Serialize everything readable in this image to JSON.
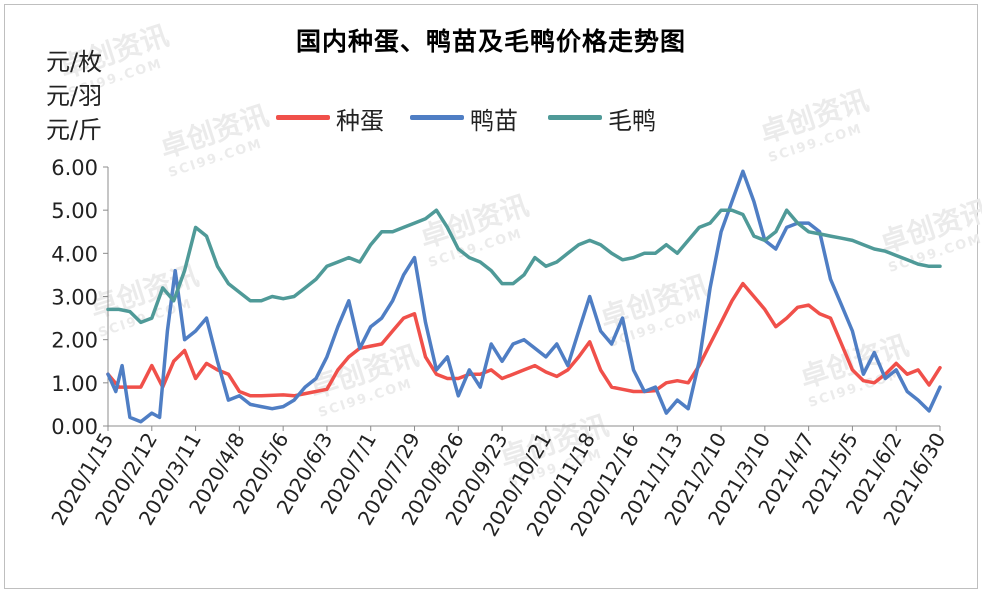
{
  "chart_data": {
    "type": "line",
    "title": "国内种蛋、鸭苗及毛鸭价格走势图",
    "units": [
      "元/枚",
      "元/羽",
      "元/斤"
    ],
    "ylim": [
      0,
      6
    ],
    "yticks": [
      "0.00",
      "1.00",
      "2.00",
      "3.00",
      "4.00",
      "5.00",
      "6.00"
    ],
    "xticks": [
      "2020/1/15",
      "2020/2/12",
      "2020/3/11",
      "2020/4/8",
      "2020/5/6",
      "2020/6/3",
      "2020/7/1",
      "2020/7/29",
      "2020/8/26",
      "2020/9/23",
      "2020/10/21",
      "2020/11/18",
      "2020/12/16",
      "2021/1/13",
      "2021/2/10",
      "2021/3/10",
      "2021/4/7",
      "2021/5/5",
      "2021/6/2",
      "2021/6/30"
    ],
    "x_range": [
      "2020/1/15",
      "2021/6/30"
    ],
    "grid": false,
    "legend_position": "top",
    "series": [
      {
        "name": "种蛋",
        "color": "#f0504a",
        "points": [
          [
            "2020/1/15",
            1.2
          ],
          [
            "2020/1/22",
            0.9
          ],
          [
            "2020/2/5",
            0.9
          ],
          [
            "2020/2/12",
            1.4
          ],
          [
            "2020/2/19",
            0.9
          ],
          [
            "2020/2/26",
            1.5
          ],
          [
            "2020/3/4",
            1.75
          ],
          [
            "2020/3/11",
            1.1
          ],
          [
            "2020/3/18",
            1.45
          ],
          [
            "2020/3/25",
            1.3
          ],
          [
            "2020/4/1",
            1.2
          ],
          [
            "2020/4/8",
            0.8
          ],
          [
            "2020/4/15",
            0.7
          ],
          [
            "2020/4/22",
            0.7
          ],
          [
            "2020/5/6",
            0.72
          ],
          [
            "2020/5/13",
            0.7
          ],
          [
            "2020/5/20",
            0.75
          ],
          [
            "2020/6/3",
            0.85
          ],
          [
            "2020/6/10",
            1.3
          ],
          [
            "2020/6/17",
            1.6
          ],
          [
            "2020/6/24",
            1.8
          ],
          [
            "2020/7/1",
            1.85
          ],
          [
            "2020/7/8",
            1.9
          ],
          [
            "2020/7/15",
            2.2
          ],
          [
            "2020/7/22",
            2.5
          ],
          [
            "2020/7/29",
            2.6
          ],
          [
            "2020/8/5",
            1.6
          ],
          [
            "2020/8/12",
            1.2
          ],
          [
            "2020/8/19",
            1.1
          ],
          [
            "2020/8/26",
            1.1
          ],
          [
            "2020/9/2",
            1.2
          ],
          [
            "2020/9/9",
            1.2
          ],
          [
            "2020/9/16",
            1.3
          ],
          [
            "2020/9/23",
            1.1
          ],
          [
            "2020/9/30",
            1.2
          ],
          [
            "2020/10/7",
            1.3
          ],
          [
            "2020/10/14",
            1.4
          ],
          [
            "2020/10/21",
            1.25
          ],
          [
            "2020/10/28",
            1.15
          ],
          [
            "2020/11/4",
            1.3
          ],
          [
            "2020/11/11",
            1.6
          ],
          [
            "2020/11/18",
            1.95
          ],
          [
            "2020/11/25",
            1.3
          ],
          [
            "2020/12/2",
            0.9
          ],
          [
            "2020/12/9",
            0.85
          ],
          [
            "2020/12/16",
            0.8
          ],
          [
            "2020/12/23",
            0.8
          ],
          [
            "2020/12/30",
            0.82
          ],
          [
            "2021/1/6",
            1.0
          ],
          [
            "2021/1/13",
            1.05
          ],
          [
            "2021/1/20",
            1.0
          ],
          [
            "2021/1/27",
            1.4
          ],
          [
            "2021/2/3",
            1.9
          ],
          [
            "2021/2/10",
            2.4
          ],
          [
            "2021/2/17",
            2.9
          ],
          [
            "2021/2/24",
            3.3
          ],
          [
            "2021/3/3",
            3.0
          ],
          [
            "2021/3/10",
            2.7
          ],
          [
            "2021/3/17",
            2.3
          ],
          [
            "2021/3/24",
            2.5
          ],
          [
            "2021/3/31",
            2.75
          ],
          [
            "2021/4/7",
            2.8
          ],
          [
            "2021/4/14",
            2.6
          ],
          [
            "2021/4/21",
            2.5
          ],
          [
            "2021/4/28",
            1.9
          ],
          [
            "2021/5/5",
            1.3
          ],
          [
            "2021/5/12",
            1.05
          ],
          [
            "2021/5/19",
            1.0
          ],
          [
            "2021/5/26",
            1.2
          ],
          [
            "2021/6/2",
            1.45
          ],
          [
            "2021/6/9",
            1.2
          ],
          [
            "2021/6/16",
            1.3
          ],
          [
            "2021/6/23",
            0.95
          ],
          [
            "2021/6/30",
            1.35
          ]
        ]
      },
      {
        "name": "鸭苗",
        "color": "#4f7ec4",
        "points": [
          [
            "2020/1/15",
            1.2
          ],
          [
            "2020/1/20",
            0.8
          ],
          [
            "2020/1/24",
            1.4
          ],
          [
            "2020/1/29",
            0.2
          ],
          [
            "2020/2/5",
            0.1
          ],
          [
            "2020/2/12",
            0.3
          ],
          [
            "2020/2/17",
            0.2
          ],
          [
            "2020/2/22",
            2.2
          ],
          [
            "2020/2/27",
            3.6
          ],
          [
            "2020/3/4",
            2.0
          ],
          [
            "2020/3/11",
            2.2
          ],
          [
            "2020/3/18",
            2.5
          ],
          [
            "2020/3/25",
            1.5
          ],
          [
            "2020/4/1",
            0.6
          ],
          [
            "2020/4/8",
            0.7
          ],
          [
            "2020/4/15",
            0.5
          ],
          [
            "2020/4/22",
            0.45
          ],
          [
            "2020/4/29",
            0.4
          ],
          [
            "2020/5/6",
            0.45
          ],
          [
            "2020/5/13",
            0.6
          ],
          [
            "2020/5/20",
            0.9
          ],
          [
            "2020/5/27",
            1.1
          ],
          [
            "2020/6/3",
            1.6
          ],
          [
            "2020/6/10",
            2.3
          ],
          [
            "2020/6/17",
            2.9
          ],
          [
            "2020/6/24",
            1.8
          ],
          [
            "2020/7/1",
            2.3
          ],
          [
            "2020/7/8",
            2.5
          ],
          [
            "2020/7/15",
            2.9
          ],
          [
            "2020/7/22",
            3.5
          ],
          [
            "2020/7/29",
            3.9
          ],
          [
            "2020/8/5",
            2.4
          ],
          [
            "2020/8/12",
            1.3
          ],
          [
            "2020/8/19",
            1.6
          ],
          [
            "2020/8/26",
            0.7
          ],
          [
            "2020/9/2",
            1.3
          ],
          [
            "2020/9/9",
            0.9
          ],
          [
            "2020/9/16",
            1.9
          ],
          [
            "2020/9/23",
            1.5
          ],
          [
            "2020/9/30",
            1.9
          ],
          [
            "2020/10/7",
            2.0
          ],
          [
            "2020/10/14",
            1.8
          ],
          [
            "2020/10/21",
            1.6
          ],
          [
            "2020/10/28",
            1.9
          ],
          [
            "2020/11/4",
            1.4
          ],
          [
            "2020/11/11",
            2.2
          ],
          [
            "2020/11/18",
            3.0
          ],
          [
            "2020/11/25",
            2.2
          ],
          [
            "2020/12/2",
            1.9
          ],
          [
            "2020/12/9",
            2.5
          ],
          [
            "2020/12/16",
            1.3
          ],
          [
            "2020/12/23",
            0.8
          ],
          [
            "2020/12/30",
            0.9
          ],
          [
            "2021/1/6",
            0.3
          ],
          [
            "2021/1/13",
            0.6
          ],
          [
            "2021/1/20",
            0.4
          ],
          [
            "2021/1/27",
            1.5
          ],
          [
            "2021/2/3",
            3.2
          ],
          [
            "2021/2/10",
            4.5
          ],
          [
            "2021/2/17",
            5.2
          ],
          [
            "2021/2/24",
            5.9
          ],
          [
            "2021/3/3",
            5.2
          ],
          [
            "2021/3/10",
            4.3
          ],
          [
            "2021/3/17",
            4.1
          ],
          [
            "2021/3/24",
            4.6
          ],
          [
            "2021/3/31",
            4.7
          ],
          [
            "2021/4/7",
            4.7
          ],
          [
            "2021/4/14",
            4.5
          ],
          [
            "2021/4/21",
            3.4
          ],
          [
            "2021/4/28",
            2.8
          ],
          [
            "2021/5/5",
            2.2
          ],
          [
            "2021/5/12",
            1.2
          ],
          [
            "2021/5/19",
            1.7
          ],
          [
            "2021/5/26",
            1.1
          ],
          [
            "2021/6/2",
            1.3
          ],
          [
            "2021/6/9",
            0.8
          ],
          [
            "2021/6/16",
            0.6
          ],
          [
            "2021/6/23",
            0.35
          ],
          [
            "2021/6/30",
            0.9
          ]
        ]
      },
      {
        "name": "毛鸭",
        "color": "#4f9a98",
        "points": [
          [
            "2020/1/15",
            2.7
          ],
          [
            "2020/1/22",
            2.7
          ],
          [
            "2020/1/29",
            2.65
          ],
          [
            "2020/2/5",
            2.4
          ],
          [
            "2020/2/12",
            2.5
          ],
          [
            "2020/2/19",
            3.2
          ],
          [
            "2020/2/26",
            2.9
          ],
          [
            "2020/3/4",
            3.6
          ],
          [
            "2020/3/11",
            4.6
          ],
          [
            "2020/3/18",
            4.4
          ],
          [
            "2020/3/25",
            3.7
          ],
          [
            "2020/4/1",
            3.3
          ],
          [
            "2020/4/8",
            3.1
          ],
          [
            "2020/4/15",
            2.9
          ],
          [
            "2020/4/22",
            2.9
          ],
          [
            "2020/4/29",
            3.0
          ],
          [
            "2020/5/6",
            2.95
          ],
          [
            "2020/5/13",
            3.0
          ],
          [
            "2020/5/20",
            3.2
          ],
          [
            "2020/5/27",
            3.4
          ],
          [
            "2020/6/3",
            3.7
          ],
          [
            "2020/6/10",
            3.8
          ],
          [
            "2020/6/17",
            3.9
          ],
          [
            "2020/6/24",
            3.8
          ],
          [
            "2020/7/1",
            4.2
          ],
          [
            "2020/7/8",
            4.5
          ],
          [
            "2020/7/15",
            4.5
          ],
          [
            "2020/7/22",
            4.6
          ],
          [
            "2020/7/29",
            4.7
          ],
          [
            "2020/8/5",
            4.8
          ],
          [
            "2020/8/12",
            5.0
          ],
          [
            "2020/8/19",
            4.6
          ],
          [
            "2020/8/26",
            4.1
          ],
          [
            "2020/9/2",
            3.9
          ],
          [
            "2020/9/9",
            3.8
          ],
          [
            "2020/9/16",
            3.6
          ],
          [
            "2020/9/23",
            3.3
          ],
          [
            "2020/9/30",
            3.3
          ],
          [
            "2020/10/7",
            3.5
          ],
          [
            "2020/10/14",
            3.9
          ],
          [
            "2020/10/21",
            3.7
          ],
          [
            "2020/10/28",
            3.8
          ],
          [
            "2020/11/4",
            4.0
          ],
          [
            "2020/11/11",
            4.2
          ],
          [
            "2020/11/18",
            4.3
          ],
          [
            "2020/11/25",
            4.2
          ],
          [
            "2020/12/2",
            4.0
          ],
          [
            "2020/12/9",
            3.85
          ],
          [
            "2020/12/16",
            3.9
          ],
          [
            "2020/12/23",
            4.0
          ],
          [
            "2020/12/30",
            4.0
          ],
          [
            "2021/1/6",
            4.2
          ],
          [
            "2021/1/13",
            4.0
          ],
          [
            "2021/1/20",
            4.3
          ],
          [
            "2021/1/27",
            4.6
          ],
          [
            "2021/2/3",
            4.7
          ],
          [
            "2021/2/10",
            5.0
          ],
          [
            "2021/2/17",
            5.0
          ],
          [
            "2021/2/24",
            4.9
          ],
          [
            "2021/3/3",
            4.4
          ],
          [
            "2021/3/10",
            4.3
          ],
          [
            "2021/3/17",
            4.5
          ],
          [
            "2021/3/24",
            5.0
          ],
          [
            "2021/3/31",
            4.7
          ],
          [
            "2021/4/7",
            4.5
          ],
          [
            "2021/4/14",
            4.45
          ],
          [
            "2021/4/21",
            4.4
          ],
          [
            "2021/4/28",
            4.35
          ],
          [
            "2021/5/5",
            4.3
          ],
          [
            "2021/5/12",
            4.2
          ],
          [
            "2021/5/19",
            4.1
          ],
          [
            "2021/5/26",
            4.05
          ],
          [
            "2021/6/2",
            3.95
          ],
          [
            "2021/6/9",
            3.85
          ],
          [
            "2021/6/16",
            3.75
          ],
          [
            "2021/6/23",
            3.7
          ],
          [
            "2021/6/30",
            3.7
          ]
        ]
      }
    ]
  },
  "watermark": {
    "brand": "卓创资讯",
    "domain": "SCI99.COM"
  }
}
